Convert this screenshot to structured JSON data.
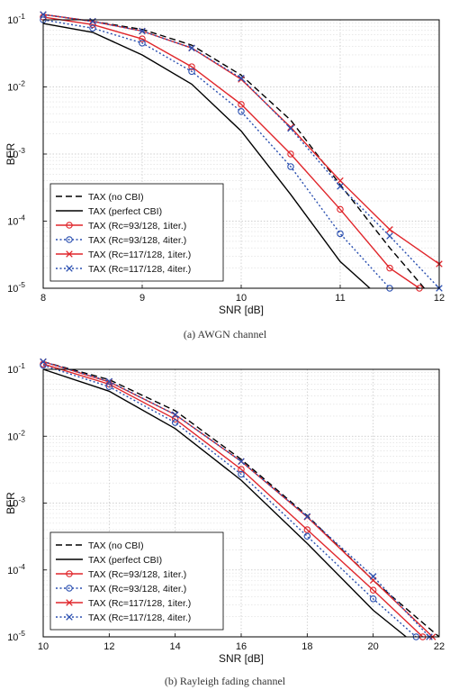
{
  "chart_data": [
    {
      "type": "line",
      "caption": "(a)  AWGN channel",
      "xlabel": "SNR [dB]",
      "ylabel": "BER",
      "xlim": [
        8,
        12
      ],
      "ylim": [
        1e-05,
        0.1
      ],
      "yscale": "log",
      "grid": true,
      "legend_position": "bottom-left",
      "x_ticks": [
        "8",
        "9",
        "10",
        "11",
        "12"
      ],
      "y_ticks": [
        {
          "base": "10",
          "exp": "-1",
          "value": 0.1
        },
        {
          "base": "10",
          "exp": "-2",
          "value": 0.01
        },
        {
          "base": "10",
          "exp": "-3",
          "value": 0.001
        },
        {
          "base": "10",
          "exp": "-4",
          "value": 0.0001
        },
        {
          "base": "10",
          "exp": "-5",
          "value": 1e-05
        }
      ],
      "series": [
        {
          "name": "TAX (no CBI)",
          "color": "#000000",
          "dash": "dashed",
          "marker": "none",
          "x": [
            8,
            8.5,
            9,
            9.5,
            10,
            10.5,
            11,
            11.5,
            11.85
          ],
          "y": [
            0.12,
            0.095,
            0.072,
            0.042,
            0.015,
            0.0032,
            0.00035,
            4e-05,
            1e-05
          ]
        },
        {
          "name": "TAX (perfect CBI)",
          "color": "#000000",
          "dash": "solid",
          "marker": "none",
          "x": [
            8,
            8.5,
            9,
            9.5,
            10,
            10.5,
            11,
            11.3
          ],
          "y": [
            0.088,
            0.065,
            0.03,
            0.011,
            0.0022,
            0.00025,
            2.5e-05,
            1e-05
          ]
        },
        {
          "name": "TAX (Rc=93/128, 1iter.)",
          "color": "#e0262b",
          "dash": "solid",
          "marker": "circle",
          "x": [
            8,
            8.5,
            9,
            9.5,
            10,
            10.5,
            11,
            11.5,
            11.8
          ],
          "y": [
            0.11,
            0.085,
            0.052,
            0.02,
            0.0055,
            0.001,
            0.00015,
            2e-05,
            1e-05
          ]
        },
        {
          "name": "TAX (Rc=93/128, 4iter.)",
          "color": "#2a4fb0",
          "dash": "dotted",
          "marker": "circle",
          "x": [
            8,
            8.5,
            9,
            9.5,
            10,
            10.5,
            11,
            11.5
          ],
          "y": [
            0.1,
            0.075,
            0.045,
            0.017,
            0.0043,
            0.00065,
            6.5e-05,
            1e-05
          ]
        },
        {
          "name": "TAX (Rc=117/128, 1iter.)",
          "color": "#e0262b",
          "dash": "solid",
          "marker": "x",
          "x": [
            8,
            8.5,
            9,
            9.5,
            10,
            10.5,
            11,
            11.5,
            12
          ],
          "y": [
            0.12,
            0.095,
            0.068,
            0.038,
            0.013,
            0.0025,
            0.0004,
            7.5e-05,
            2.3e-05
          ]
        },
        {
          "name": "TAX (Rc=117/128, 4iter.)",
          "color": "#2a4fb0",
          "dash": "dotted",
          "marker": "x",
          "x": [
            8,
            8.5,
            9,
            9.5,
            10,
            10.5,
            11,
            11.5,
            12
          ],
          "y": [
            0.12,
            0.095,
            0.068,
            0.038,
            0.0135,
            0.0024,
            0.00033,
            6e-05,
            1e-05
          ]
        }
      ]
    },
    {
      "type": "line",
      "caption": "(b)  Rayleigh fading channel",
      "xlabel": "SNR [dB]",
      "ylabel": "BER",
      "xlim": [
        10,
        22
      ],
      "ylim": [
        1e-05,
        0.1
      ],
      "yscale": "log",
      "grid": true,
      "legend_position": "bottom-left",
      "x_ticks": [
        "10",
        "12",
        "14",
        "16",
        "18",
        "20",
        "22"
      ],
      "y_ticks": [
        {
          "base": "10",
          "exp": "-1",
          "value": 0.1
        },
        {
          "base": "10",
          "exp": "-2",
          "value": 0.01
        },
        {
          "base": "10",
          "exp": "-3",
          "value": 0.001
        },
        {
          "base": "10",
          "exp": "-4",
          "value": 0.0001
        },
        {
          "base": "10",
          "exp": "-5",
          "value": 1e-05
        }
      ],
      "series": [
        {
          "name": "TAX (no CBI)",
          "color": "#000000",
          "dash": "dashed",
          "marker": "none",
          "x": [
            10,
            12,
            14,
            16,
            18,
            20,
            22
          ],
          "y": [
            0.13,
            0.07,
            0.024,
            0.0045,
            0.00065,
            7e-05,
            1e-05
          ]
        },
        {
          "name": "TAX (perfect CBI)",
          "color": "#000000",
          "dash": "solid",
          "marker": "none",
          "x": [
            10,
            12,
            14,
            16,
            18,
            20,
            21
          ],
          "y": [
            0.1,
            0.047,
            0.013,
            0.0022,
            0.00025,
            2.5e-05,
            1e-05
          ]
        },
        {
          "name": "TAX (Rc=93/128, 1iter.)",
          "color": "#e0262b",
          "dash": "solid",
          "marker": "circle",
          "x": [
            10,
            12,
            14,
            16,
            18,
            20,
            21.5
          ],
          "y": [
            0.12,
            0.06,
            0.018,
            0.0032,
            0.0004,
            5e-05,
            1e-05
          ]
        },
        {
          "name": "TAX (Rc=93/128, 4iter.)",
          "color": "#2a4fb0",
          "dash": "dotted",
          "marker": "circle",
          "x": [
            10,
            12,
            14,
            16,
            18,
            20,
            21.3
          ],
          "y": [
            0.115,
            0.055,
            0.016,
            0.0027,
            0.00032,
            3.7e-05,
            1e-05
          ]
        },
        {
          "name": "TAX (Rc=117/128, 1iter.)",
          "color": "#e0262b",
          "dash": "solid",
          "marker": "x",
          "x": [
            10,
            12,
            14,
            16,
            18,
            20,
            21.8
          ],
          "y": [
            0.13,
            0.065,
            0.021,
            0.0042,
            0.00062,
            7e-05,
            1e-05
          ]
        },
        {
          "name": "TAX (Rc=117/128, 4iter.)",
          "color": "#2a4fb0",
          "dash": "dotted",
          "marker": "x",
          "x": [
            10,
            12,
            14,
            16,
            18,
            20,
            21.7
          ],
          "y": [
            0.13,
            0.066,
            0.021,
            0.0042,
            0.00063,
            8e-05,
            1e-05
          ]
        }
      ]
    }
  ]
}
